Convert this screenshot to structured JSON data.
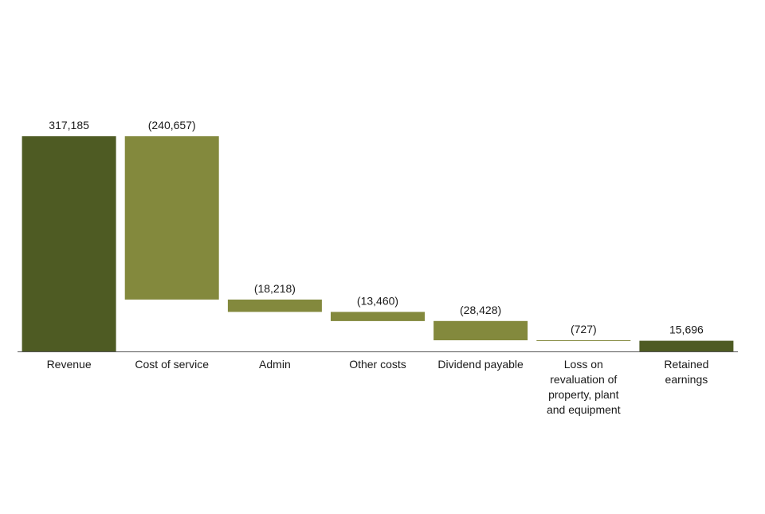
{
  "chart_data": {
    "type": "bar",
    "subtype": "waterfall",
    "categories": [
      "Revenue",
      "Cost of service",
      "Admin",
      "Other costs",
      "Dividend payable",
      "Loss on revaluation of property, plant and equipment",
      "Retained earnings"
    ],
    "category_lines": [
      [
        "Revenue"
      ],
      [
        "Cost of service"
      ],
      [
        "Admin"
      ],
      [
        "Other costs"
      ],
      [
        "Dividend payable"
      ],
      [
        "Loss on",
        "revaluation of",
        "property, plant",
        "and equipment"
      ],
      [
        "Retained",
        "earnings"
      ]
    ],
    "values": [
      317185,
      -240657,
      -18218,
      -13460,
      -28428,
      -727,
      15696
    ],
    "value_labels": [
      "317,185",
      "(240,657)",
      "(18,218)",
      "(13,460)",
      "(28,428)",
      "(727)",
      "15,696"
    ],
    "bar_kinds": [
      "total",
      "change",
      "change",
      "change",
      "change",
      "change",
      "total"
    ],
    "ylim": [
      0,
      317185
    ],
    "grid": false,
    "legend": "none",
    "title": "",
    "xlabel": "",
    "ylabel": "",
    "colors": {
      "total": "#4e5b23",
      "change": "#83893d",
      "axis": "#555555",
      "text": "#1a1a1a"
    }
  }
}
